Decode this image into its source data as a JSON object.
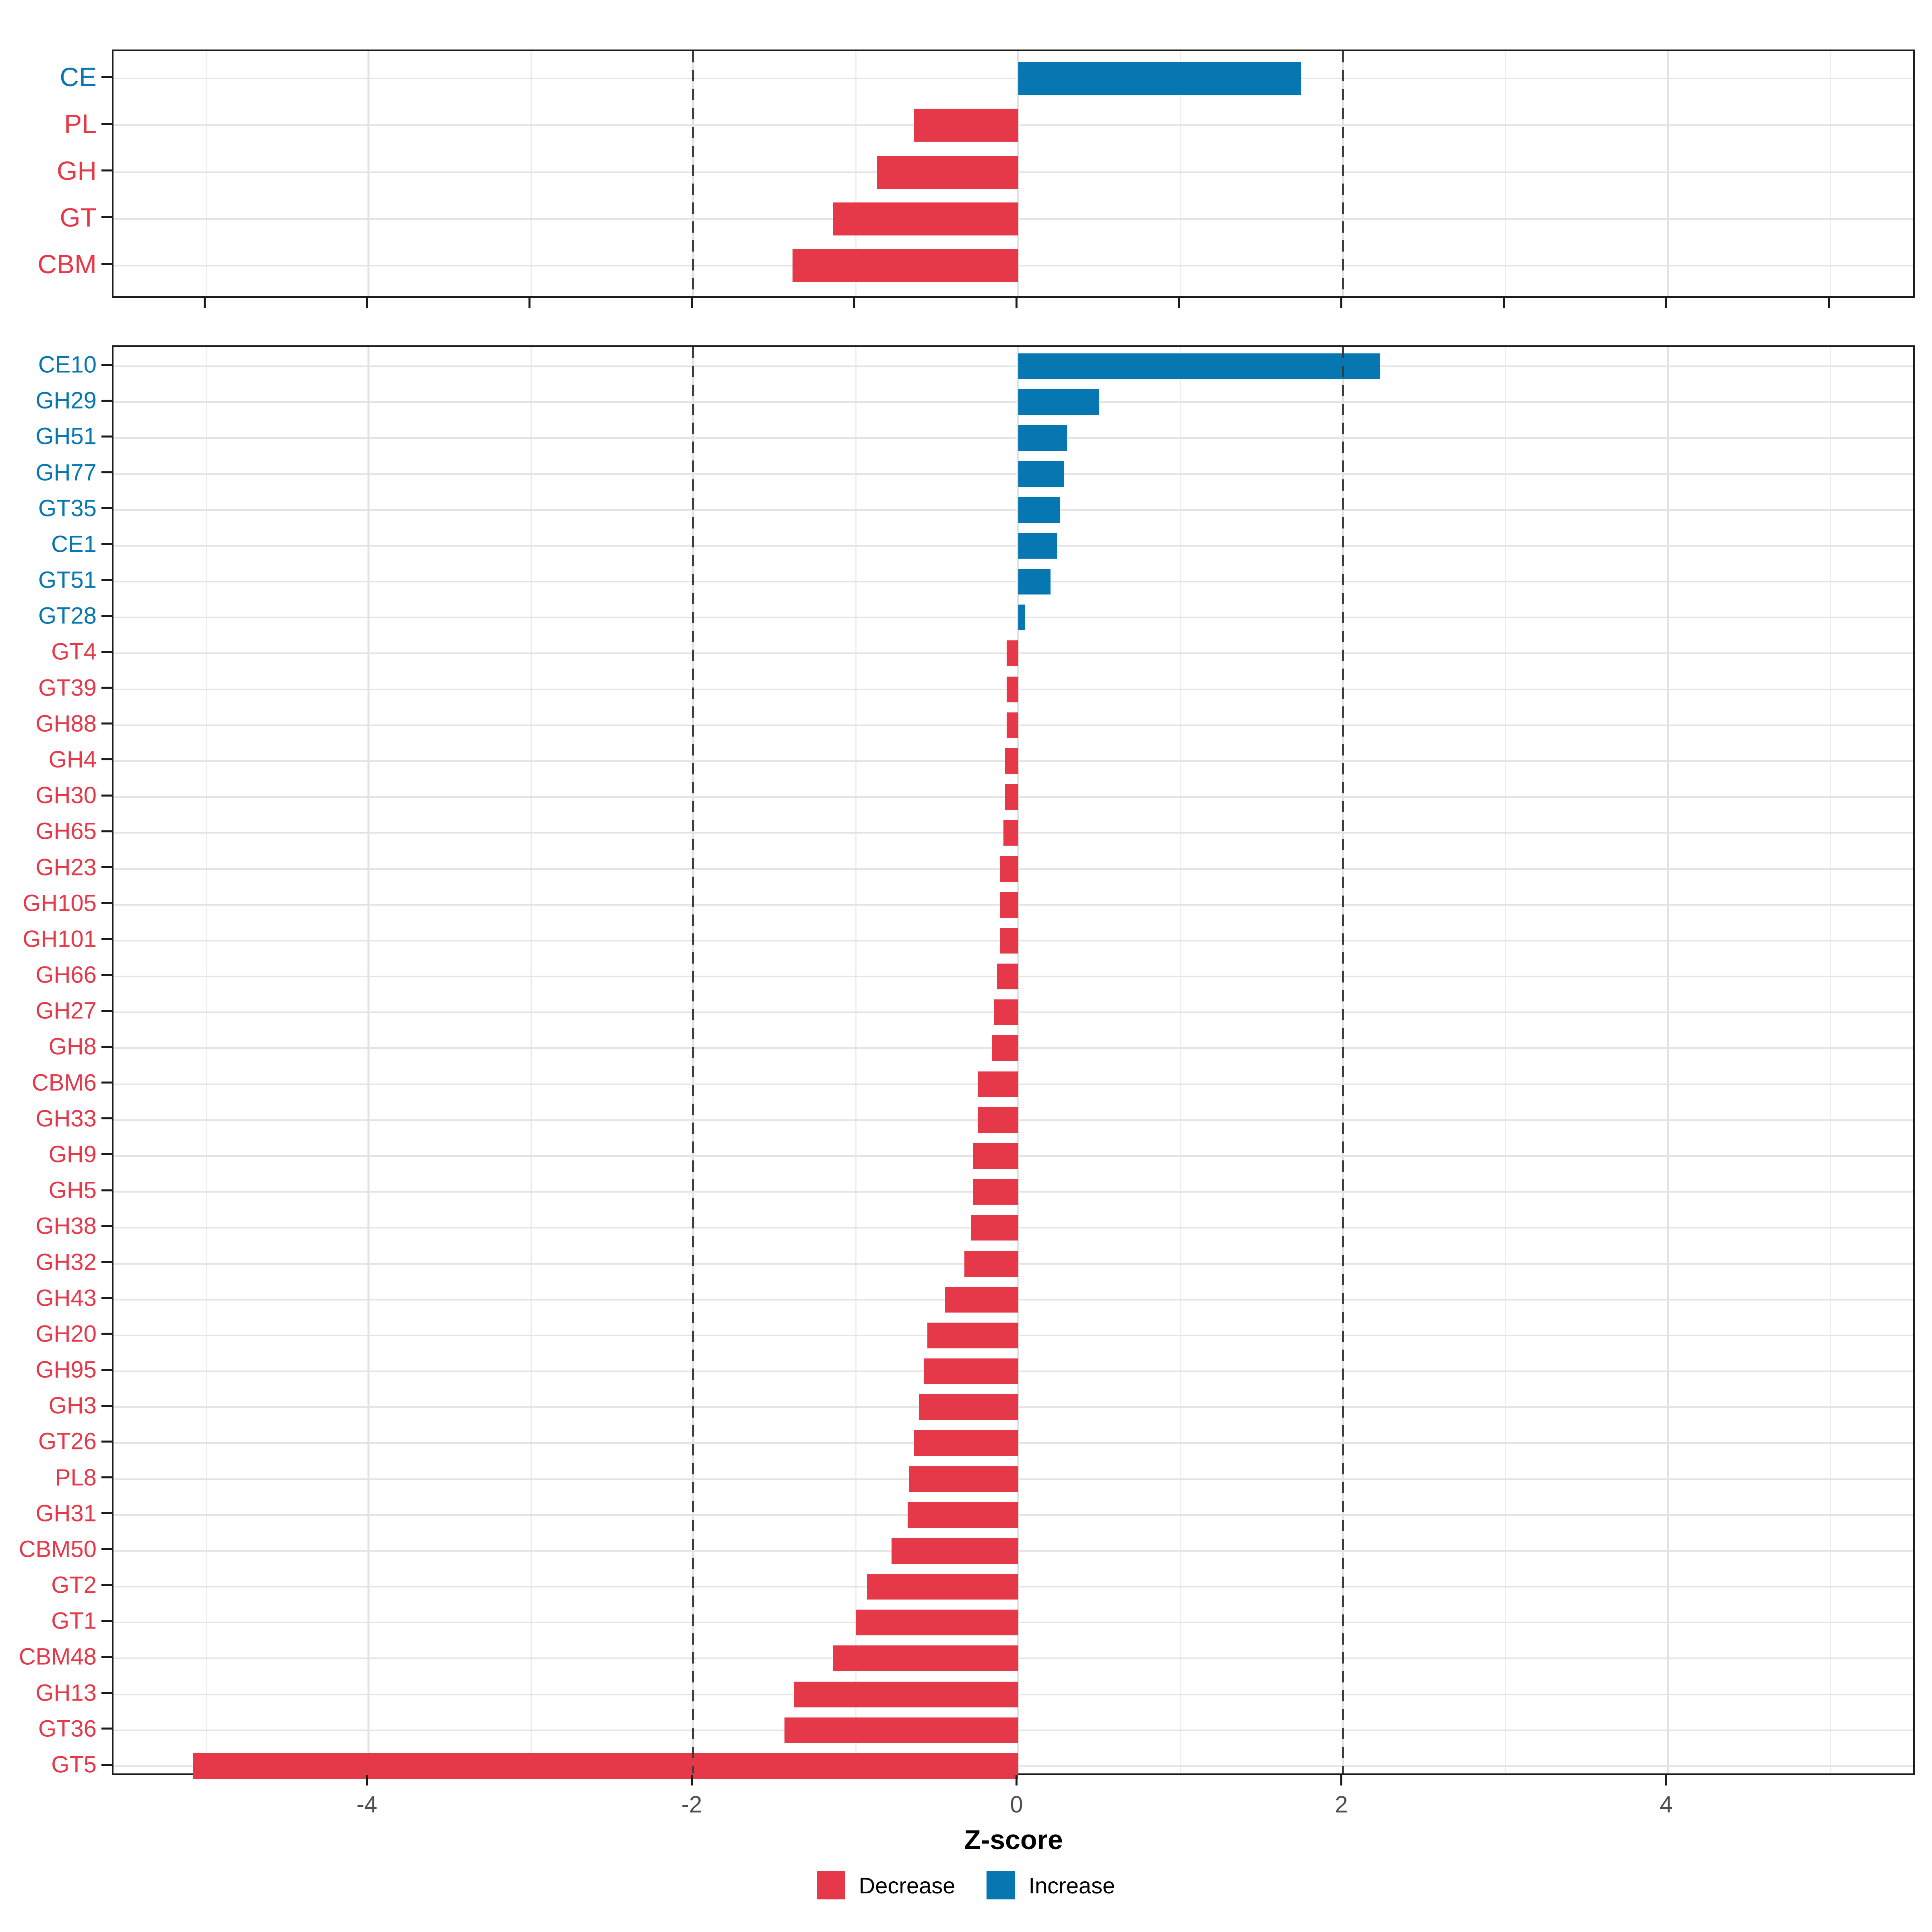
{
  "colors": {
    "decrease": "#E5394A",
    "increase": "#0777B2",
    "grid_major": "#e2e2e2",
    "grid_minor": "#ededed",
    "grid_row": "#e4e4e4",
    "dashed_line": "#3c3c3c",
    "panel_border": "#1c1c1c",
    "axis_tick_text": "#4d4d4d"
  },
  "axis": {
    "xlabel": "Z-score",
    "tick_values": [
      -4,
      -2,
      0,
      2,
      4
    ],
    "tick_labels": [
      "-4",
      "-2",
      "0",
      "2",
      "4"
    ],
    "xlim": [
      -5.57,
      5.53
    ],
    "grid_interval": 1,
    "dashed_at": [
      -2,
      2
    ]
  },
  "legend": {
    "items": [
      {
        "label": "Decrease",
        "key": "decrease"
      },
      {
        "label": "Increase",
        "key": "increase"
      }
    ]
  },
  "chart_data": [
    {
      "name": "cazyme-class-panel",
      "type": "bar",
      "orientation": "horizontal",
      "panel": "top",
      "categories": [
        "CE",
        "PL",
        "GH",
        "GT",
        "CBM"
      ],
      "values": [
        1.74,
        -0.64,
        -0.87,
        -1.14,
        -1.39
      ],
      "xlabel": "Z-score",
      "xlim": [
        -5.57,
        5.53
      ],
      "grid": true,
      "legend_position": "bottom"
    },
    {
      "name": "cazyme-family-panel",
      "type": "bar",
      "orientation": "horizontal",
      "panel": "bottom",
      "categories": [
        "CE10",
        "GH29",
        "GH51",
        "GH77",
        "GT35",
        "CE1",
        "GT51",
        "GT28",
        "GT4",
        "GT39",
        "GH88",
        "GH4",
        "GH30",
        "GH65",
        "GH23",
        "GH105",
        "GH101",
        "GH66",
        "GH27",
        "GH8",
        "CBM6",
        "GH33",
        "GH9",
        "GH5",
        "GH38",
        "GH32",
        "GH43",
        "GH20",
        "GH95",
        "GH3",
        "GT26",
        "PL8",
        "GH31",
        "CBM50",
        "GT2",
        "GT1",
        "CBM48",
        "GH13",
        "GT36",
        "GT5"
      ],
      "values": [
        2.23,
        0.5,
        0.3,
        0.28,
        0.26,
        0.24,
        0.2,
        0.04,
        -0.07,
        -0.07,
        -0.07,
        -0.08,
        -0.08,
        -0.09,
        -0.11,
        -0.11,
        -0.11,
        -0.13,
        -0.15,
        -0.16,
        -0.25,
        -0.25,
        -0.28,
        -0.28,
        -0.29,
        -0.33,
        -0.45,
        -0.56,
        -0.58,
        -0.61,
        -0.64,
        -0.67,
        -0.68,
        -0.78,
        -0.93,
        -1.0,
        -1.14,
        -1.38,
        -1.44,
        -5.08
      ],
      "xlabel": "Z-score",
      "xlim": [
        -5.57,
        5.53
      ],
      "grid": true,
      "legend_position": "bottom"
    }
  ]
}
